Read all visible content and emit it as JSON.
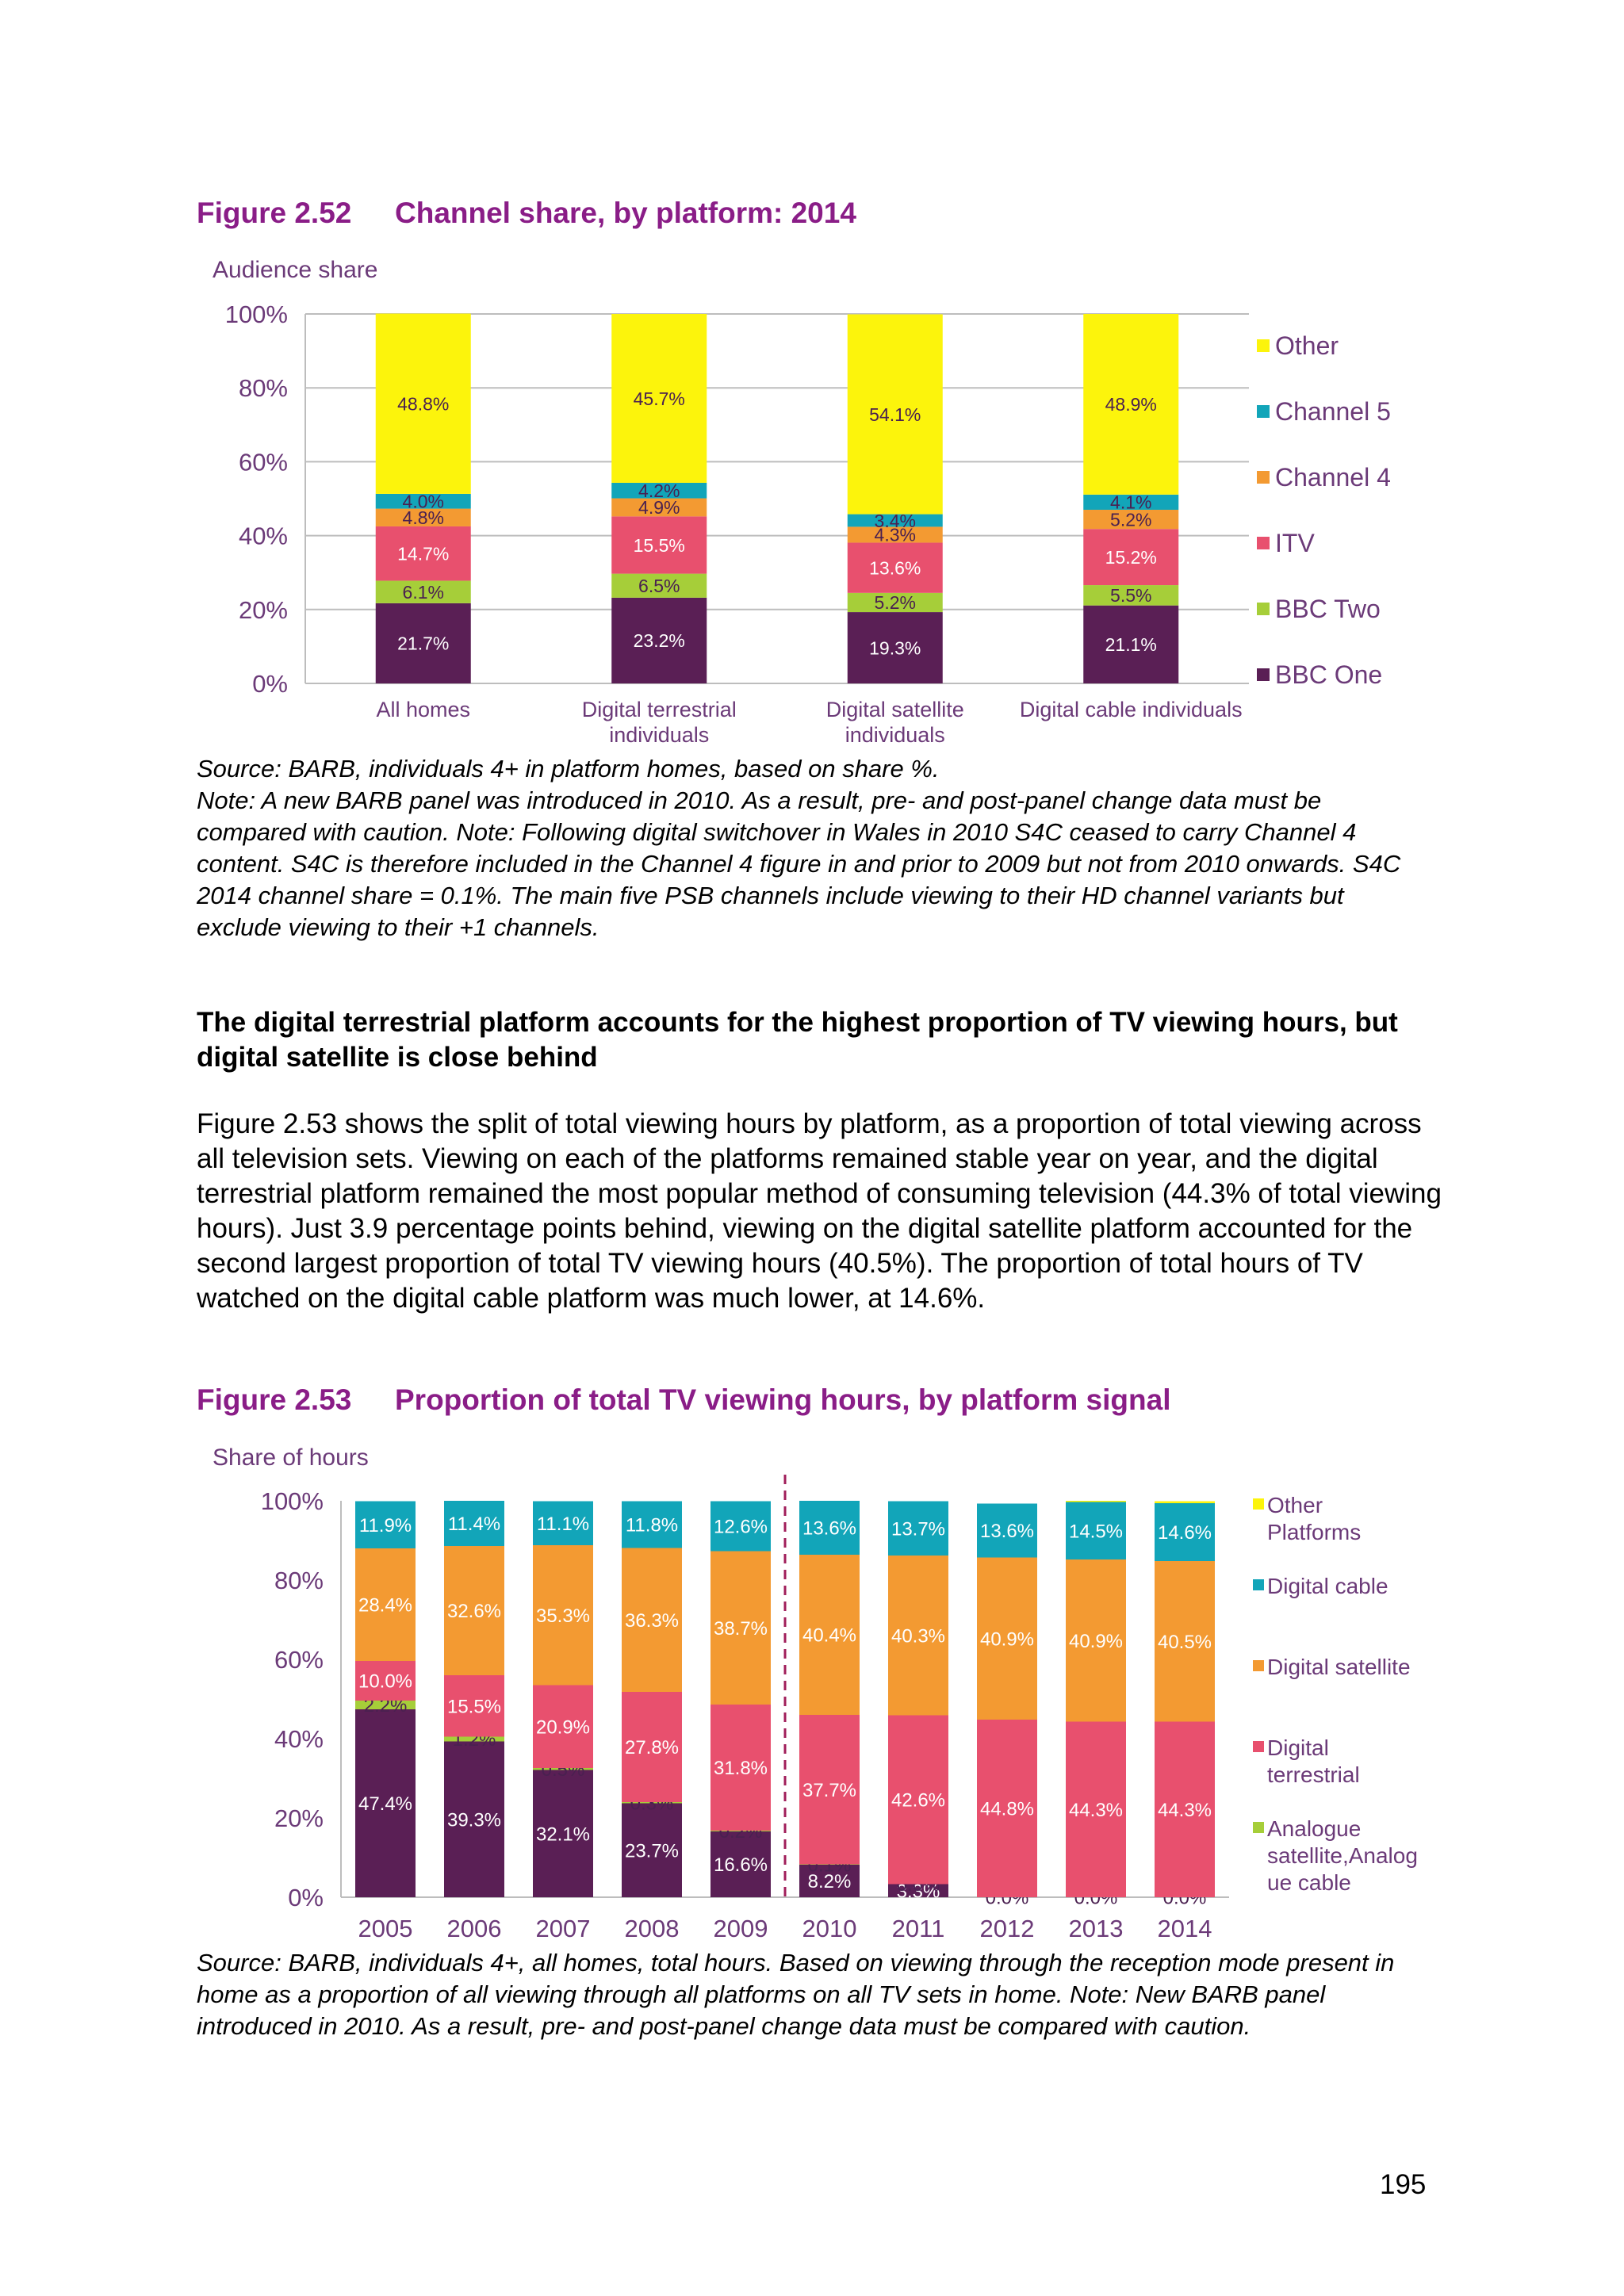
{
  "figure1": {
    "number": "Figure 2.52",
    "title": "Channel share, by platform: 2014",
    "ylabel": "Audience share",
    "source": "Source: BARB, individuals 4+ in platform homes, based on share %.",
    "note": "Note: A new BARB panel was introduced in 2010. As a result, pre- and post-panel change data must be compared with caution. Note: Following digital switchover in Wales in 2010 S4C ceased to carry Channel 4 content. S4C is therefore included in the Channel 4 figure in and prior to 2009 but not from 2010 onwards. S4C 2014 channel share = 0.1%. The main five PSB channels include viewing to their HD channel variants but exclude viewing to their +1 channels."
  },
  "heading": "The digital terrestrial platform accounts for the highest proportion of TV viewing hours, but digital satellite is close behind",
  "paragraph": "Figure 2.53 shows the split of total viewing hours by platform, as a proportion of total viewing across all television sets. Viewing on each of the platforms remained stable year on year, and the digital terrestrial platform remained the most popular method of consuming television (44.3% of total viewing hours). Just 3.9 percentage points behind, viewing on the digital satellite platform accounted for the second largest proportion of total TV viewing hours (40.5%). The proportion of total hours of TV watched on the digital cable platform was much lower, at 14.6%.",
  "figure2": {
    "number": "Figure 2.53",
    "title": "Proportion of total TV viewing hours, by platform signal",
    "ylabel": "Share of hours",
    "source": "Source: BARB, individuals 4+, all homes, total hours. Based on viewing through the reception mode present in home as a proportion of all viewing through all platforms on all TV sets in home. Note: New BARB panel introduced in 2010. As a result, pre- and post-panel change data must be compared with caution."
  },
  "page_number": "195",
  "chart_data": [
    {
      "type": "bar",
      "stacked": true,
      "categories": [
        [
          "All homes"
        ],
        [
          "Digital terrestrial",
          "individuals"
        ],
        [
          "Digital satellite",
          "individuals"
        ],
        [
          "Digital cable individuals"
        ]
      ],
      "y_ticks": [
        "0%",
        "20%",
        "40%",
        "60%",
        "80%",
        "100%"
      ],
      "ylim": [
        0,
        100
      ],
      "grid": true,
      "legend_position": "right",
      "series": [
        {
          "name": "BBC One",
          "color": "#5a1f55",
          "values": [
            21.7,
            23.2,
            19.3,
            21.1
          ],
          "labels": [
            "21.7%",
            "23.2%",
            "19.3%",
            "21.1%"
          ]
        },
        {
          "name": "BBC Two",
          "color": "#a6ce39",
          "values": [
            6.1,
            6.5,
            5.2,
            5.5
          ],
          "labels": [
            "6.1%",
            "6.5%",
            "5.2%",
            "5.5%"
          ]
        },
        {
          "name": "ITV",
          "color": "#e8506e",
          "values": [
            14.7,
            15.5,
            13.6,
            15.2
          ],
          "labels": [
            "14.7%",
            "15.5%",
            "13.6%",
            "15.2%"
          ]
        },
        {
          "name": "Channel 4",
          "color": "#f39a32",
          "values": [
            4.8,
            4.9,
            4.3,
            5.2
          ],
          "labels": [
            "4.8%",
            "4.9%",
            "4.3%",
            "5.2%"
          ]
        },
        {
          "name": "Channel 5",
          "color": "#12a5b9",
          "values": [
            4.0,
            4.2,
            3.4,
            4.1
          ],
          "labels": [
            "4.0%",
            "4.2%",
            "3.4%",
            "4.1%"
          ]
        },
        {
          "name": "Other",
          "color": "#fcf40c",
          "values": [
            48.8,
            45.7,
            54.1,
            48.9
          ],
          "labels": [
            "48.8%",
            "45.7%",
            "54.1%",
            "48.9%"
          ]
        }
      ]
    },
    {
      "type": "bar",
      "stacked": true,
      "categories": [
        "2005",
        "2006",
        "2007",
        "2008",
        "2009",
        "2010",
        "2011",
        "2012",
        "2013",
        "2014"
      ],
      "y_ticks": [
        "0%",
        "20%",
        "40%",
        "60%",
        "80%",
        "100%"
      ],
      "ylim": [
        0,
        100
      ],
      "grid": false,
      "panel_break_after": "2009",
      "legend_position": "right",
      "series": [
        {
          "name": "",
          "color": "#5a1f55",
          "values": [
            47.4,
            39.3,
            32.1,
            23.7,
            16.6,
            8.2,
            3.3,
            0.0,
            0.0,
            0.0
          ],
          "labels": [
            "47.4%",
            "39.3%",
            "32.1%",
            "23.7%",
            "16.6%",
            "8.2%",
            "3.3%",
            "",
            "",
            ""
          ]
        },
        {
          "name": "Analogue satellite,Analogue cable",
          "color": "#a6ce39",
          "values": [
            2.2,
            1.2,
            0.5,
            0.3,
            0.2,
            0.1,
            0.0,
            0.0,
            0.0,
            0.0
          ],
          "labels": [
            "2.2%",
            "1.2%",
            "0.5%",
            "0.3%",
            "0.2%",
            "0.1%",
            "0.0%",
            "0.0%",
            "0.0%",
            "0.0%"
          ]
        },
        {
          "name": "Digital terrestrial",
          "color": "#e8506e",
          "values": [
            10.0,
            15.5,
            20.9,
            27.8,
            31.8,
            37.7,
            42.6,
            44.8,
            44.3,
            44.3
          ],
          "labels": [
            "10.0%",
            "15.5%",
            "20.9%",
            "27.8%",
            "31.8%",
            "37.7%",
            "42.6%",
            "44.8%",
            "44.3%",
            "44.3%"
          ]
        },
        {
          "name": "Digital satellite",
          "color": "#f39a32",
          "values": [
            28.4,
            32.6,
            35.3,
            36.3,
            38.7,
            40.4,
            40.3,
            40.9,
            40.9,
            40.5
          ],
          "labels": [
            "28.4%",
            "32.6%",
            "35.3%",
            "36.3%",
            "38.7%",
            "40.4%",
            "40.3%",
            "40.9%",
            "40.9%",
            "40.5%"
          ]
        },
        {
          "name": "Digital cable",
          "color": "#12a5b9",
          "values": [
            11.9,
            11.4,
            11.1,
            11.8,
            12.6,
            13.6,
            13.7,
            13.6,
            14.5,
            14.6
          ],
          "labels": [
            "11.9%",
            "11.4%",
            "11.1%",
            "11.8%",
            "12.6%",
            "13.6%",
            "13.7%",
            "13.6%",
            "14.5%",
            "14.6%"
          ]
        },
        {
          "name": "Other Platforms",
          "color": "#fcf40c",
          "values": [
            0.0,
            0.0,
            0.0,
            0.0,
            0.0,
            0.0,
            0.0,
            0.0,
            0.3,
            0.5
          ],
          "labels": [
            "",
            "",
            "",
            "",
            "",
            "",
            "",
            "",
            "",
            ""
          ]
        }
      ]
    }
  ]
}
